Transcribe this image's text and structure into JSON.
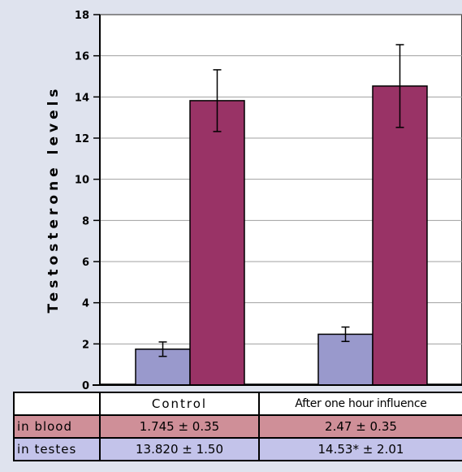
{
  "chart_data": {
    "type": "bar",
    "title": "",
    "xlabel": "",
    "ylabel": "Testosterone levels",
    "ylim": [
      0,
      18
    ],
    "yticks": [
      0,
      2,
      4,
      6,
      8,
      10,
      12,
      14,
      16,
      18
    ],
    "grid": true,
    "categories": [
      "Control",
      "After one hour influence"
    ],
    "series": [
      {
        "name": "in blood",
        "color": "#9999cc",
        "values": [
          1.745,
          2.47
        ],
        "errors": [
          0.35,
          0.35
        ]
      },
      {
        "name": "in testes",
        "color": "#993366",
        "values": [
          13.82,
          14.53
        ],
        "errors": [
          1.5,
          2.01
        ]
      }
    ]
  },
  "table": {
    "columns": [
      "",
      "Control",
      "After one hour influence"
    ],
    "rows": [
      {
        "label": "in blood",
        "control": "1.745 ± 0.35",
        "after": "2.47 ± 0.35"
      },
      {
        "label": "in testes",
        "control": "13.820 ± 1.50",
        "after": "14.53* ± 2.01"
      }
    ]
  }
}
